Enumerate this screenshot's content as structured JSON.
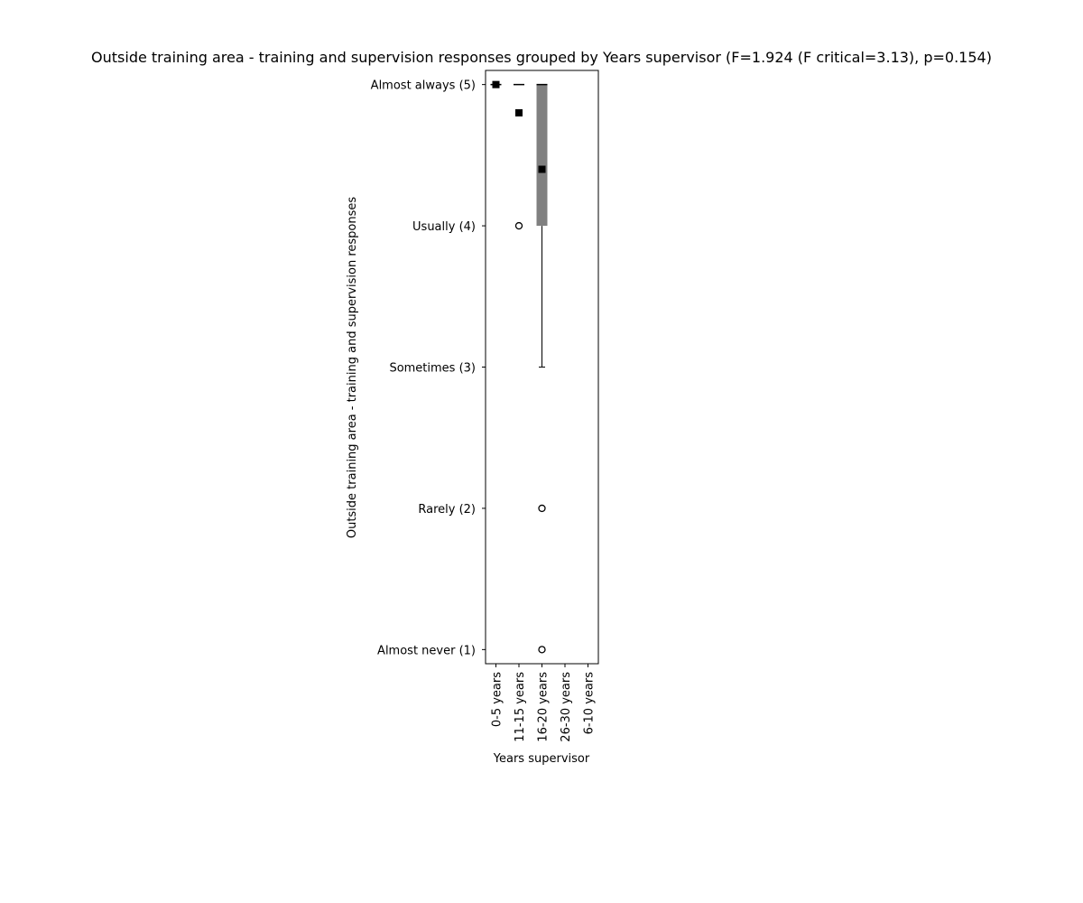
{
  "chart_data": {
    "type": "box",
    "title": "Outside training area - training and supervision responses grouped by Years supervisor (F=1.924 (F critical=3.13), p=0.154)",
    "xlabel": "Years supervisor",
    "ylabel": "Outside training area - training and supervision responses",
    "categories": [
      "0-5 years",
      "11-15 years",
      "16-20 years",
      "26-30 years",
      "6-10 years"
    ],
    "y_ticks": [
      {
        "value": 5,
        "label": "Almost always (5)"
      },
      {
        "value": 4,
        "label": "Usually (4)"
      },
      {
        "value": 3,
        "label": "Sometimes (3)"
      },
      {
        "value": 2,
        "label": "Rarely (2)"
      },
      {
        "value": 1,
        "label": "Almost never (1)"
      }
    ],
    "ylim": [
      0.9,
      5.1
    ],
    "boxes": [
      {
        "category": "0-5 years",
        "q1": 5,
        "median": 5,
        "q3": 5,
        "whisker_low": 5,
        "whisker_high": 5,
        "mean": 5,
        "outliers": []
      },
      {
        "category": "11-15 years",
        "q1": 5,
        "median": 5,
        "q3": 5,
        "whisker_low": 5,
        "whisker_high": 5,
        "mean": 4.8,
        "outliers": [
          4
        ]
      },
      {
        "category": "16-20 years",
        "q1": 4,
        "median": 5,
        "q3": 5,
        "whisker_low": 3,
        "whisker_high": 5,
        "mean": 4.4,
        "outliers": [
          2,
          1
        ]
      }
    ],
    "colors": {
      "box_fill": "#808080",
      "mean_marker": "#000000",
      "axis": "#000000"
    },
    "legend": "none",
    "grid": false
  }
}
